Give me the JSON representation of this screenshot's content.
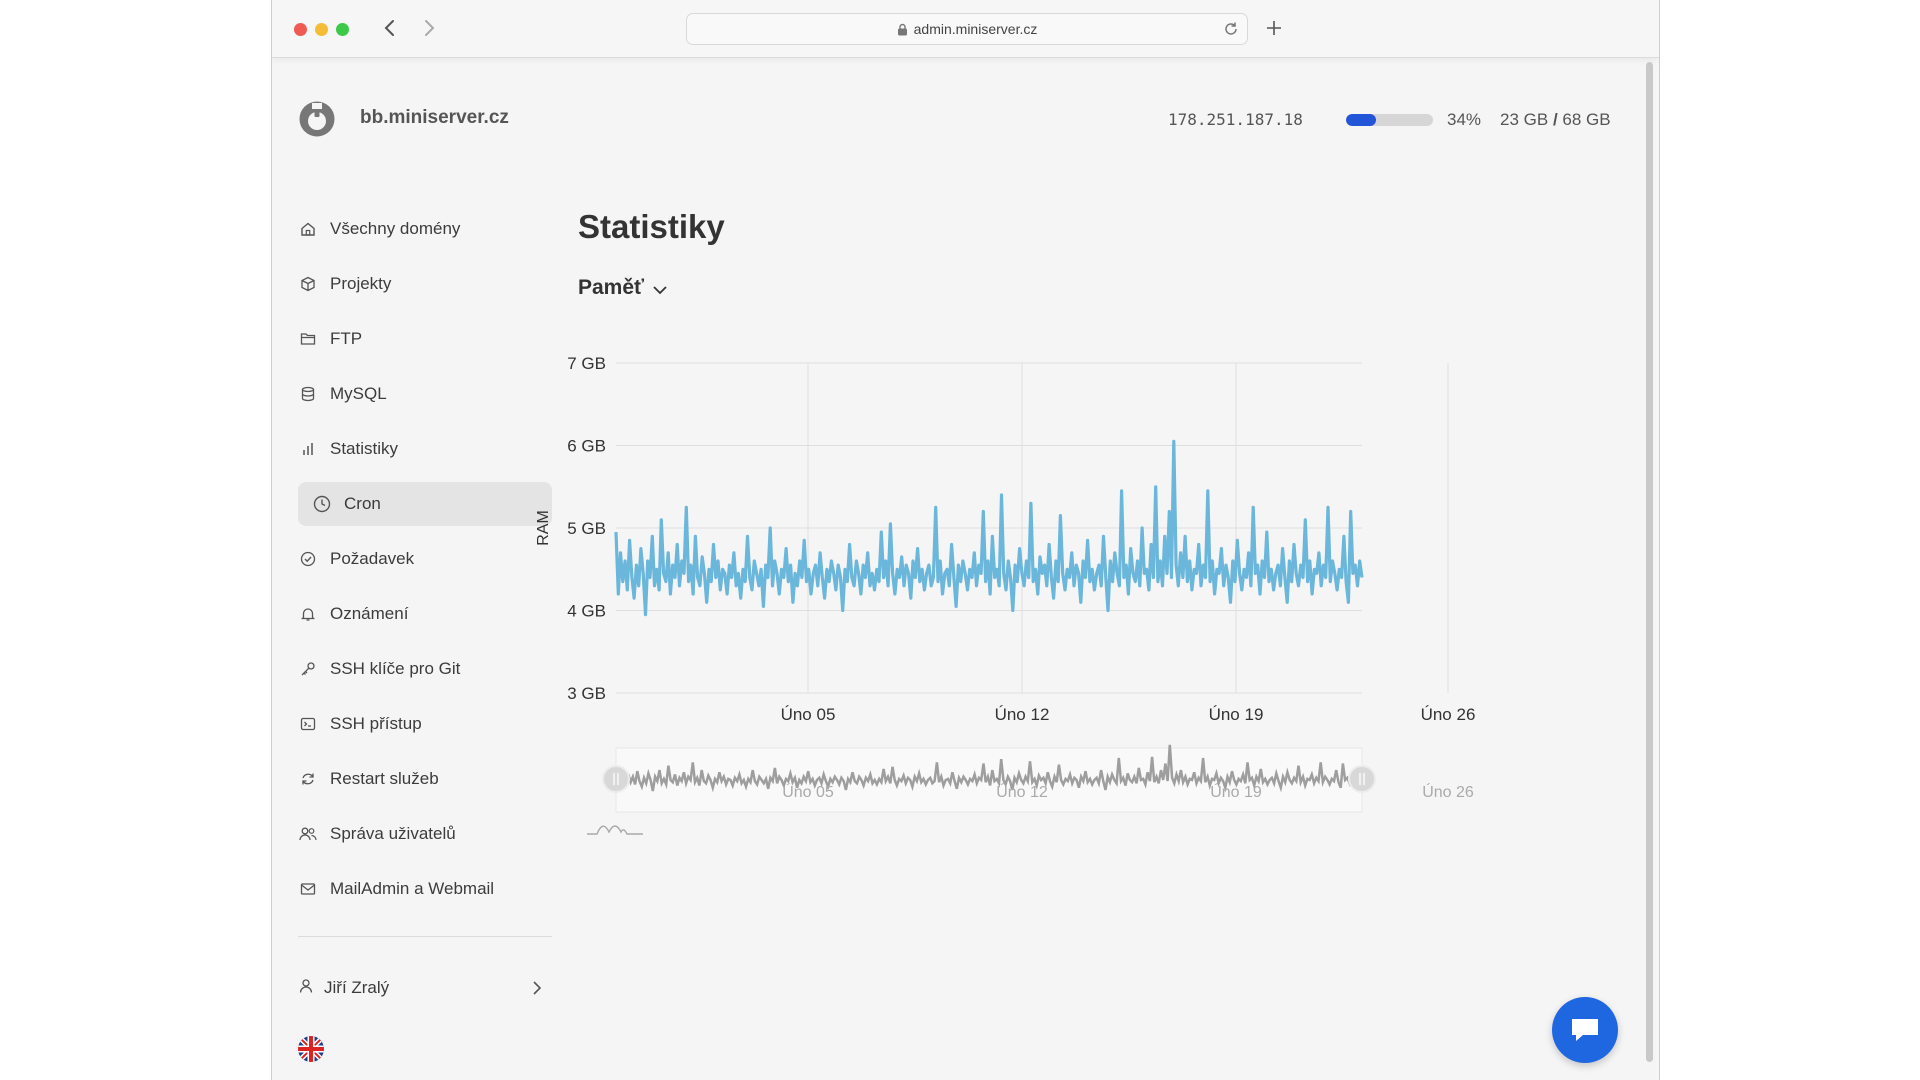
{
  "browser": {
    "url": "admin.miniserver.cz"
  },
  "header": {
    "hostname": "bb.miniserver.cz",
    "ip": "178.251.187.18",
    "disk": {
      "percent_label": "34%",
      "percent_value": 34,
      "used": "23 GB",
      "separator": "/",
      "total": "68 GB",
      "accent": "#2255d8"
    }
  },
  "sidebar": {
    "items": [
      {
        "label": "Všechny domény",
        "icon": "home-icon"
      },
      {
        "label": "Projekty",
        "icon": "box-icon"
      },
      {
        "label": "FTP",
        "icon": "folder-icon"
      },
      {
        "label": "MySQL",
        "icon": "database-icon"
      },
      {
        "label": "Statistiky",
        "icon": "bar-chart-icon"
      },
      {
        "label": "Cron",
        "icon": "clock-icon",
        "active": true
      },
      {
        "label": "Požadavek",
        "icon": "check-circle-icon"
      },
      {
        "label": "Oznámení",
        "icon": "bell-icon"
      },
      {
        "label": "SSH klíče pro Git",
        "icon": "key-icon"
      },
      {
        "label": "SSH přístup",
        "icon": "terminal-icon"
      },
      {
        "label": "Restart služeb",
        "icon": "refresh-icon"
      },
      {
        "label": "Správa uživatelů",
        "icon": "users-icon"
      },
      {
        "label": "MailAdmin a Webmail",
        "icon": "mail-icon"
      }
    ],
    "user": {
      "name": "Jiří Zralý"
    },
    "language_flag": "uk-flag-icon"
  },
  "main": {
    "title": "Statistiky",
    "metric_selector": "Paměť"
  },
  "chart_data": {
    "type": "line",
    "ylabel": "RAM",
    "yticks": [
      "3 GB",
      "4 GB",
      "5 GB",
      "6 GB",
      "7 GB"
    ],
    "ylim": [
      3,
      7
    ],
    "xticks": [
      "Úno 05",
      "Úno 12",
      "Úno 19",
      "Úno 26"
    ],
    "grid": true,
    "series_color": "#6bb6db",
    "navigator_color": "#9e9e9e",
    "series": [
      {
        "unit": "GB",
        "baseline": 4.45,
        "values": [
          4.95,
          4.2,
          4.7,
          4.35,
          4.6,
          4.25,
          4.85,
          4.4,
          4.15,
          4.55,
          4.3,
          4.75,
          4.45,
          3.95,
          4.6,
          4.4,
          4.9,
          4.3,
          4.5,
          4.25,
          5.1,
          4.45,
          4.35,
          4.7,
          4.2,
          4.55,
          4.4,
          4.8,
          4.3,
          4.6,
          4.45,
          5.25,
          4.35,
          4.55,
          4.2,
          4.9,
          4.4,
          4.3,
          4.65,
          4.45,
          4.1,
          4.5,
          4.35,
          4.8,
          4.4,
          4.6,
          4.25,
          4.5,
          4.45,
          4.2,
          4.55,
          4.4,
          4.7,
          4.3,
          4.45,
          4.15,
          4.5,
          4.35,
          4.9,
          4.4,
          4.25,
          4.6,
          4.45,
          4.3,
          4.5,
          4.05,
          4.55,
          4.4,
          5.0,
          4.3,
          4.6,
          4.45,
          4.2,
          4.5,
          4.4,
          4.75,
          4.35,
          4.55,
          4.1,
          4.45,
          4.3,
          4.6,
          4.4,
          4.85,
          4.35,
          4.5,
          4.2,
          4.45,
          4.55,
          4.3,
          4.7,
          4.4,
          4.15,
          4.5,
          4.35,
          4.6,
          4.45,
          4.25,
          4.55,
          4.4,
          4.0,
          4.5,
          4.35,
          4.8,
          4.4,
          4.3,
          4.6,
          4.45,
          4.2,
          4.55,
          4.4,
          4.7,
          4.3,
          4.45,
          4.25,
          4.5,
          4.35,
          4.95,
          4.4,
          4.6,
          4.3,
          5.05,
          4.45,
          4.2,
          4.5,
          4.4,
          4.65,
          4.3,
          4.55,
          4.45,
          4.15,
          4.6,
          4.4,
          4.75,
          4.35,
          4.5,
          4.25,
          4.45,
          4.55,
          4.3,
          4.4,
          5.25,
          4.35,
          4.6,
          4.2,
          4.45,
          4.5,
          4.3,
          4.8,
          4.4,
          4.05,
          4.55,
          4.35,
          4.6,
          4.45,
          4.25,
          4.5,
          4.4,
          4.7,
          4.3,
          4.55,
          4.45,
          5.2,
          4.35,
          4.6,
          4.2,
          4.9,
          4.4,
          4.5,
          4.3,
          5.4,
          4.45,
          4.25,
          4.6,
          4.4,
          4.0,
          4.55,
          4.35,
          4.75,
          4.45,
          4.3,
          4.6,
          4.4,
          5.3,
          4.35,
          4.5,
          4.2,
          4.65,
          4.45,
          4.55,
          4.3,
          4.8,
          4.4,
          4.15,
          4.6,
          4.35,
          5.15,
          4.45,
          4.25,
          4.5,
          4.4,
          4.7,
          4.3,
          4.55,
          4.45,
          4.1,
          4.6,
          4.4,
          4.85,
          4.35,
          4.5,
          4.25,
          4.45,
          4.55,
          4.3,
          4.9,
          4.4,
          4.0,
          4.6,
          4.35,
          4.7,
          4.45,
          4.3,
          5.45,
          4.4,
          4.55,
          4.2,
          4.75,
          4.45,
          4.35,
          4.6,
          4.3,
          5.0,
          4.45,
          4.5,
          4.25,
          4.8,
          4.4,
          5.5,
          4.35,
          4.6,
          4.3,
          4.9,
          4.45,
          5.2,
          4.4,
          6.05,
          4.55,
          4.3,
          4.7,
          4.4,
          4.9,
          4.35,
          4.6,
          4.25,
          4.5,
          4.45,
          4.8,
          4.3,
          4.55,
          4.4,
          5.45,
          4.35,
          4.6,
          4.2,
          4.5,
          4.45,
          4.75,
          4.3,
          4.55,
          4.4,
          4.1,
          4.6,
          4.35,
          4.85,
          4.45,
          4.25,
          4.5,
          4.4,
          4.7,
          4.3,
          5.25,
          4.45,
          4.55,
          4.2,
          4.6,
          4.4,
          4.95,
          4.35,
          4.5,
          4.25,
          4.45,
          4.55,
          4.3,
          4.75,
          4.4,
          4.1,
          4.6,
          4.35,
          4.8,
          4.45,
          4.3,
          4.55,
          4.4,
          5.1,
          4.35,
          4.6,
          4.2,
          4.5,
          4.45,
          4.7,
          4.3,
          4.55,
          4.4,
          5.25,
          4.35,
          4.6,
          4.45,
          4.25,
          4.5,
          4.4,
          4.9,
          4.35,
          4.1,
          5.2,
          4.45,
          4.55,
          4.3,
          4.6,
          4.4
        ]
      }
    ]
  }
}
